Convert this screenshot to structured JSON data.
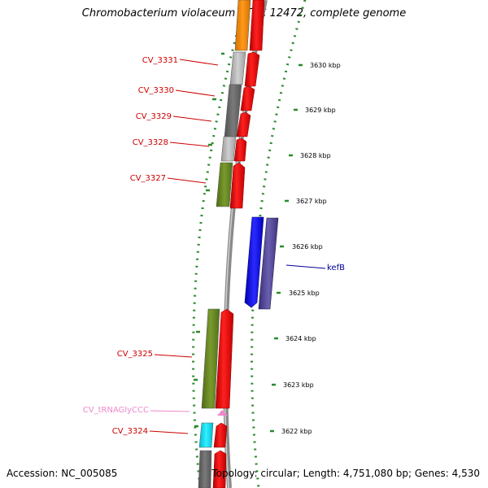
{
  "title": "Chromobacterium violaceum ATCC 12472, complete genome",
  "footer": {
    "accession_label": "Accession:",
    "accession": "NC_005085",
    "topology_label": "Topology:",
    "topology": "circular",
    "length_label": "Length:",
    "length": "4,751,080 bp",
    "genes_label": "Genes:",
    "genes": "4,530",
    "accession_text": "Accession: NC_005085",
    "stats_text": "Topology: circular; Length: 4,751,080 bp; Genes: 4,530"
  },
  "colors": {
    "forward_gene": "#ff0000",
    "highlight_gene": "#0000ff",
    "highlight_gene_dark": "#4b3f8f",
    "backbone": "#8a8a8a",
    "tick": "#2a8a2a",
    "label_red": "#cc0000",
    "label_blue": "#000099",
    "label_pink": "#ee88cc"
  },
  "scale": {
    "unit": "kbp",
    "ticks": [
      "3630 kbp",
      "3629 kbp",
      "3628 kbp",
      "3627 kbp",
      "3626 kbp",
      "3625 kbp",
      "3624 kbp",
      "3623 kbp",
      "3622 kbp"
    ]
  },
  "gene_labels": [
    {
      "name": "CV_3331",
      "color": "#cc0000"
    },
    {
      "name": "CV_3330",
      "color": "#cc0000"
    },
    {
      "name": "CV_3329",
      "color": "#cc0000"
    },
    {
      "name": "CV_3328",
      "color": "#cc0000"
    },
    {
      "name": "CV_3327",
      "color": "#cc0000"
    },
    {
      "name": "kefB",
      "color": "#000099"
    },
    {
      "name": "CV_3325",
      "color": "#cc0000"
    },
    {
      "name": "CV_tRNAGlyCCC",
      "color": "#ee88cc"
    },
    {
      "name": "CV_3324",
      "color": "#cc0000"
    }
  ]
}
